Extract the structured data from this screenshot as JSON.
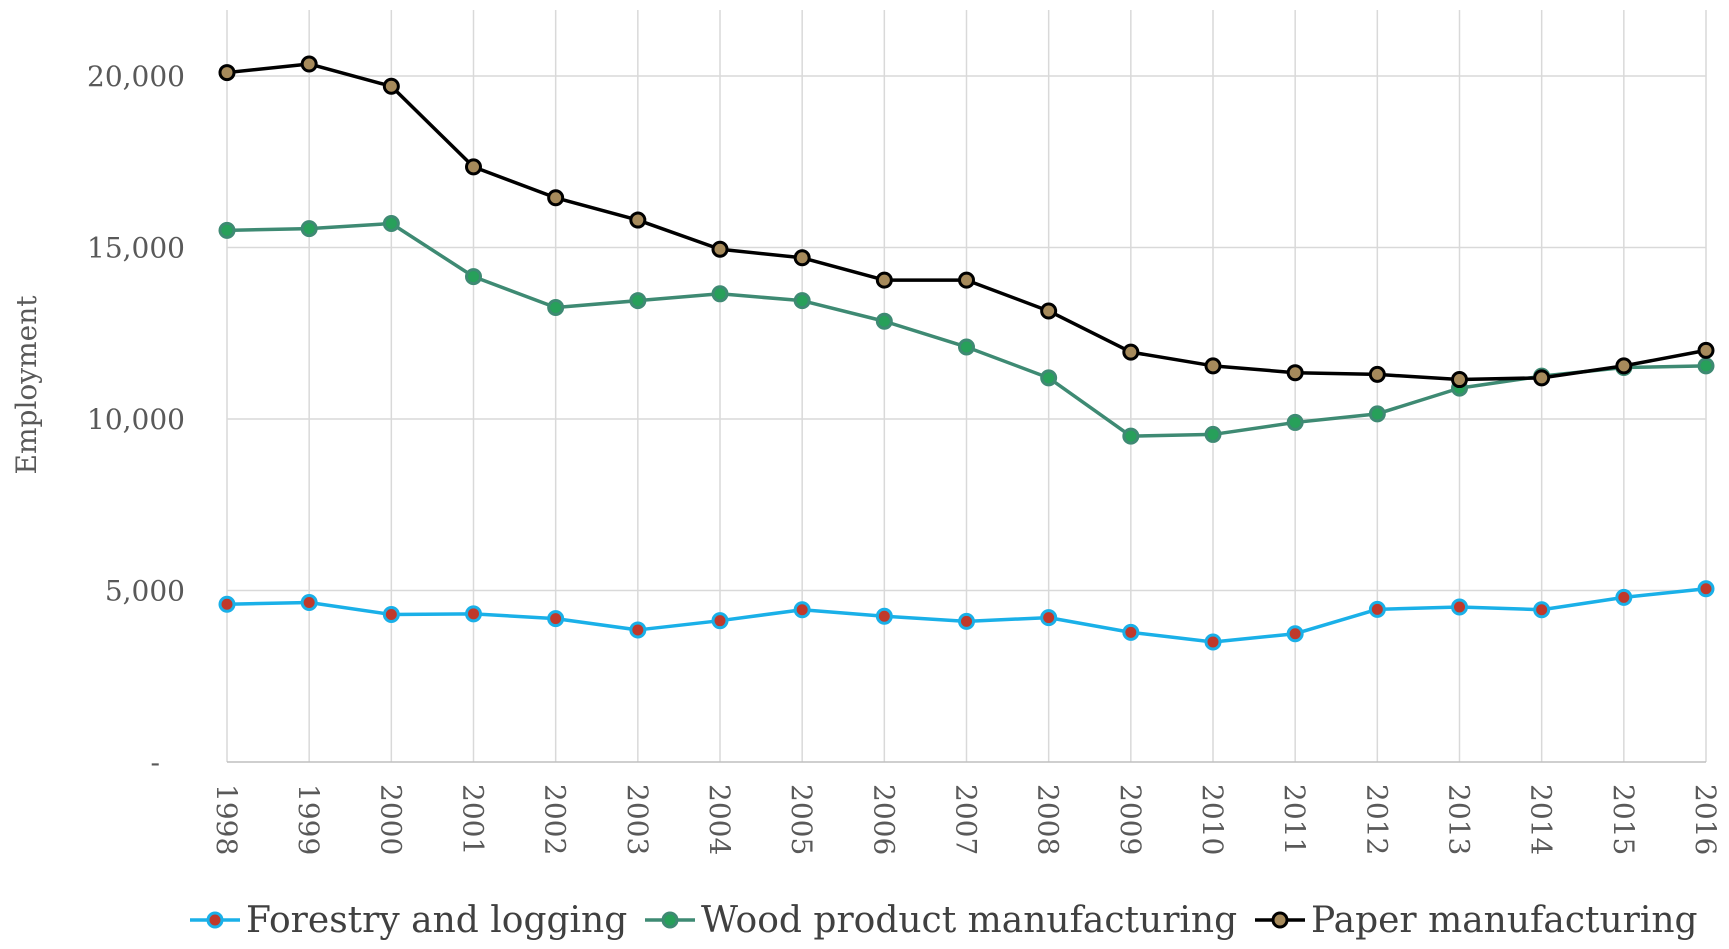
{
  "chart_data": {
    "type": "line",
    "ylabel": "Employment",
    "xlabel": "",
    "ylim": [
      0,
      22000
    ],
    "y_ticks": [
      {
        "value": 0,
        "label": "-"
      },
      {
        "value": 5000,
        "label": "5,000"
      },
      {
        "value": 10000,
        "label": "10,000"
      },
      {
        "value": 15000,
        "label": "15,000"
      },
      {
        "value": 20000,
        "label": "20,000"
      }
    ],
    "categories": [
      "1998",
      "1999",
      "2000",
      "2001",
      "2002",
      "2003",
      "2004",
      "2005",
      "2006",
      "2007",
      "2008",
      "2009",
      "2010",
      "2011",
      "2012",
      "2013",
      "2014",
      "2015",
      "2016"
    ],
    "grid": "vertical and horizontal",
    "legend_position": "bottom",
    "series": [
      {
        "name": "Forestry and logging",
        "color": "#1ab0e8",
        "marker_fill": "#c0392b",
        "values": [
          4600,
          4650,
          4300,
          4320,
          4180,
          3850,
          4120,
          4440,
          4250,
          4100,
          4210,
          3780,
          3500,
          3740,
          4450,
          4520,
          4440,
          4800,
          5050
        ]
      },
      {
        "name": "Wood product manufacturing",
        "color": "#3e8a73",
        "marker_fill": "#27a05a",
        "values": [
          15500,
          15550,
          15700,
          14150,
          13250,
          13450,
          13650,
          13450,
          12850,
          12100,
          11200,
          9500,
          9550,
          9900,
          10150,
          10900,
          11250,
          11500,
          11550
        ]
      },
      {
        "name": "Paper manufacturing",
        "color": "#000000",
        "marker_fill": "#a68a5b",
        "values": [
          20100,
          20350,
          19700,
          17350,
          16450,
          15800,
          14950,
          14700,
          14050,
          14050,
          13150,
          11950,
          11550,
          11350,
          11300,
          11150,
          11200,
          11550,
          12000
        ]
      }
    ]
  }
}
